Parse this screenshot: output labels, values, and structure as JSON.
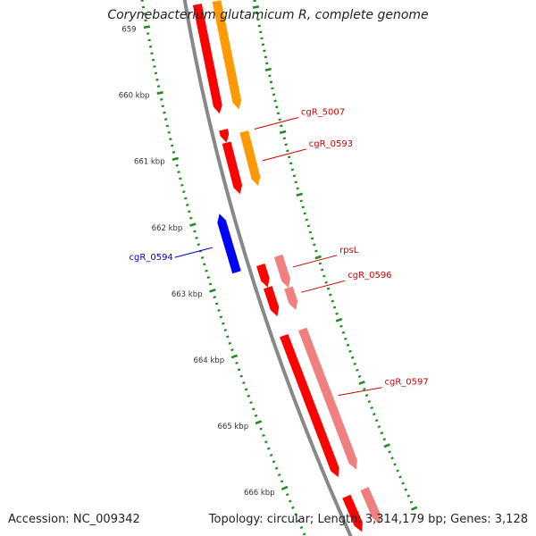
{
  "title": "Corynebacterium glutamicum R, complete genome",
  "footer": {
    "accession_label": "Accession:",
    "accession": "NC_009342",
    "topology_label": "Topology:",
    "topology": "circular",
    "length_label": "Length:",
    "length": "3,314,179 bp",
    "genes_label": "Genes:",
    "genes": "3,128"
  },
  "ticks": [
    {
      "kbp": 659,
      "label": "659"
    },
    {
      "kbp": 660,
      "label": "660 kbp"
    },
    {
      "kbp": 661,
      "label": "661 kbp"
    },
    {
      "kbp": 662,
      "label": "662 kbp"
    },
    {
      "kbp": 663,
      "label": "663 kbp"
    },
    {
      "kbp": 664,
      "label": "664 kbp"
    },
    {
      "kbp": 665,
      "label": "665 kbp"
    },
    {
      "kbp": 666,
      "label": "666 kbp"
    }
  ],
  "colors": {
    "cds_forward": "#ff0000",
    "cds_reverse": "#0000ff",
    "rna_track": "#ff9900",
    "pseudo_track": "#f08080",
    "backbone": "#888888",
    "ticks": "#228b22"
  },
  "features": [
    {
      "name": "",
      "track": "cds_forward",
      "strand": 1,
      "start_kbp": 658.8,
      "end_kbp": 660.5
    },
    {
      "name": "",
      "track": "rna",
      "strand": 1,
      "start_kbp": 658.8,
      "end_kbp": 660.5
    },
    {
      "name": "cgR_5007",
      "track": "cds_forward",
      "strand": 1,
      "start_kbp": 660.75,
      "end_kbp": 660.95,
      "label_color": "#cc0000"
    },
    {
      "name": "cgR_0593",
      "track": "cds_forward",
      "strand": 1,
      "start_kbp": 660.95,
      "end_kbp": 661.75,
      "label_color": "#cc0000"
    },
    {
      "name": "",
      "track": "rna",
      "strand": 1,
      "start_kbp": 660.85,
      "end_kbp": 661.7
    },
    {
      "name": "cgR_0594",
      "track": "cds_reverse",
      "strand": -1,
      "start_kbp": 661.95,
      "end_kbp": 662.85,
      "label_color": "#0000cc"
    },
    {
      "name": "rpsL",
      "track": "cds_forward",
      "strand": 1,
      "start_kbp": 662.85,
      "end_kbp": 663.2,
      "label_color": "#cc0000"
    },
    {
      "name": "",
      "track": "pseudo",
      "strand": 1,
      "start_kbp": 662.8,
      "end_kbp": 663.3
    },
    {
      "name": "cgR_0596",
      "track": "cds_forward",
      "strand": 1,
      "start_kbp": 663.2,
      "end_kbp": 663.65,
      "label_color": "#cc0000"
    },
    {
      "name": "",
      "track": "pseudo",
      "strand": 1,
      "start_kbp": 663.3,
      "end_kbp": 663.65
    },
    {
      "name": "cgR_0597",
      "track": "cds_forward",
      "strand": 1,
      "start_kbp": 663.95,
      "end_kbp": 666.15,
      "label_color": "#cc0000"
    },
    {
      "name": "",
      "track": "pseudo",
      "strand": 1,
      "start_kbp": 663.95,
      "end_kbp": 666.15
    },
    {
      "name": "",
      "track": "cds_forward",
      "strand": 1,
      "start_kbp": 666.45,
      "end_kbp": 667.0
    },
    {
      "name": "",
      "track": "pseudo",
      "strand": 1,
      "start_kbp": 666.45,
      "end_kbp": 667.0
    }
  ]
}
